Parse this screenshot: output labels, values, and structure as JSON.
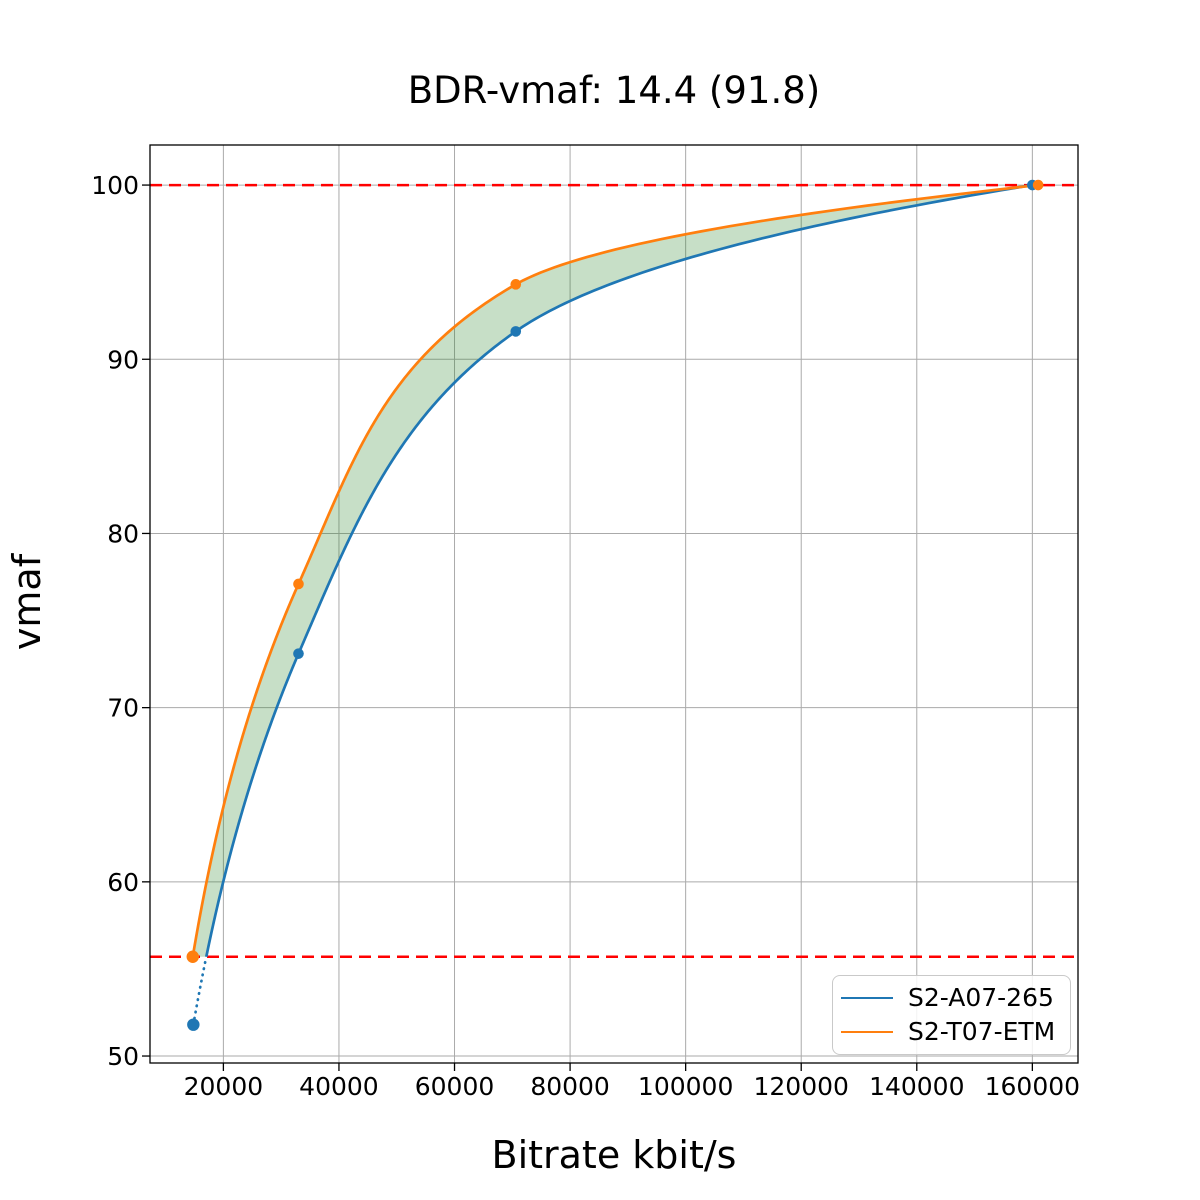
{
  "figure": {
    "background": "#ffffff"
  },
  "chart_data": {
    "type": "line",
    "title": "BDR-vmaf: 14.4 (91.8)",
    "xlabel": "Bitrate kbit/s",
    "ylabel": "vmaf",
    "xlim": [
      7300,
      167900
    ],
    "ylim": [
      49.6,
      102.3
    ],
    "xticks": [
      20000,
      40000,
      60000,
      80000,
      100000,
      120000,
      140000,
      160000
    ],
    "yticks": [
      50,
      60,
      70,
      80,
      90,
      100
    ],
    "grid": true,
    "grid_color": "#aaaaaa",
    "series": [
      {
        "name": "S2-A07-265",
        "color": "#1f77b4",
        "points": [
          [
            14800,
            51.8
          ],
          [
            33000,
            73.1
          ],
          [
            70600,
            91.6
          ],
          [
            160000,
            100.0
          ]
        ]
      },
      {
        "name": "S2-T07-ETM",
        "color": "#ff7f0e",
        "points": [
          [
            14700,
            55.7
          ],
          [
            33000,
            77.1
          ],
          [
            70600,
            94.3
          ],
          [
            161000,
            100.0
          ]
        ]
      }
    ],
    "bd_interval_lines": {
      "color": "#ff0000",
      "style": "dashed",
      "upper_vmaf": 100.0,
      "lower_vmaf": 55.7
    },
    "shaded_region": {
      "between": [
        "S2-T07-ETM",
        "S2-A07-265"
      ],
      "vmaf_range": [
        55.7,
        100.0
      ],
      "color": "#208020",
      "opacity": 0.25
    },
    "extrapolated_segment": {
      "series": "S2-A07-265",
      "style": "dotted",
      "below_vmaf": 55.7
    },
    "legend": {
      "position": "lower right"
    }
  }
}
